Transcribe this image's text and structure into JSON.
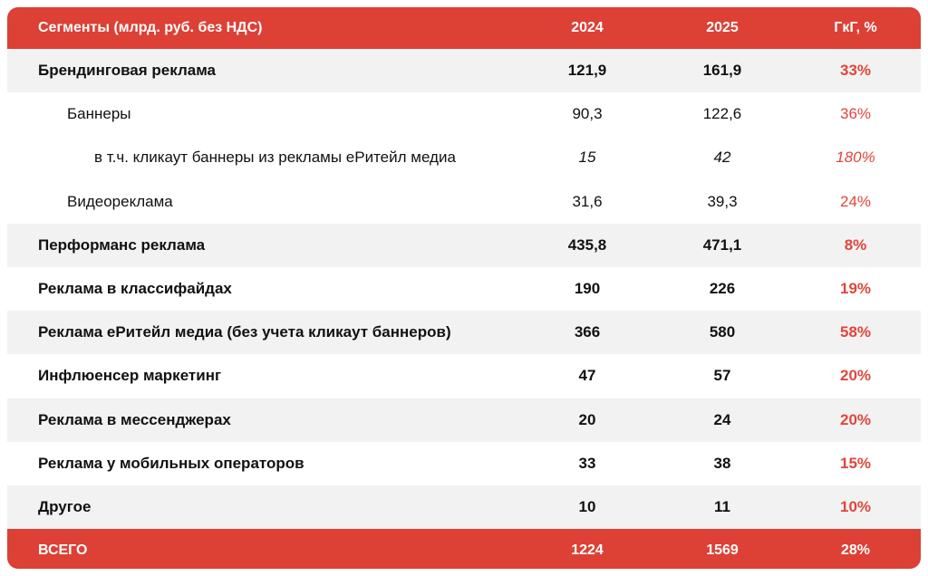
{
  "header": {
    "segment": "Сегменты (млрд. руб. без НДС)",
    "y2024": "2024",
    "y2025": "2025",
    "yoy": "ГкГ, %"
  },
  "rows": [
    {
      "name": "Брендинговая реклама",
      "v2024": "121,9",
      "v2025": "161,9",
      "yoy": "33%"
    },
    {
      "name": "Баннеры",
      "v2024": "90,3",
      "v2025": "122,6",
      "yoy": "36%"
    },
    {
      "name": "в т.ч. кликаут баннеры из рекламы еРитейл медиа",
      "v2024": "15",
      "v2025": "42",
      "yoy": "180%"
    },
    {
      "name": "Видеореклама",
      "v2024": "31,6",
      "v2025": "39,3",
      "yoy": "24%"
    },
    {
      "name": "Перформанс реклама",
      "v2024": "435,8",
      "v2025": "471,1",
      "yoy": "8%"
    },
    {
      "name": "Реклама в классифайдах",
      "v2024": "190",
      "v2025": "226",
      "yoy": "19%"
    },
    {
      "name": "Реклама еРитейл медиа (без учета кликаут баннеров)",
      "v2024": "366",
      "v2025": "580",
      "yoy": "58%"
    },
    {
      "name": "Инфлюенсер маркетинг",
      "v2024": "47",
      "v2025": "57",
      "yoy": "20%"
    },
    {
      "name": "Реклама в мессенджерах",
      "v2024": "20",
      "v2025": "24",
      "yoy": "20%"
    },
    {
      "name": "Реклама у мобильных операторов",
      "v2024": "33",
      "v2025": "38",
      "yoy": "15%"
    },
    {
      "name": "Другое",
      "v2024": "10",
      "v2025": "11",
      "yoy": "10%"
    }
  ],
  "total": {
    "name": "ВСЕГО",
    "v2024": "1224",
    "v2025": "1569",
    "yoy": "28%"
  },
  "colors": {
    "accent": "#dd4035",
    "row_shade": "#f2f2f2",
    "yoy_text": "#e0463b"
  }
}
